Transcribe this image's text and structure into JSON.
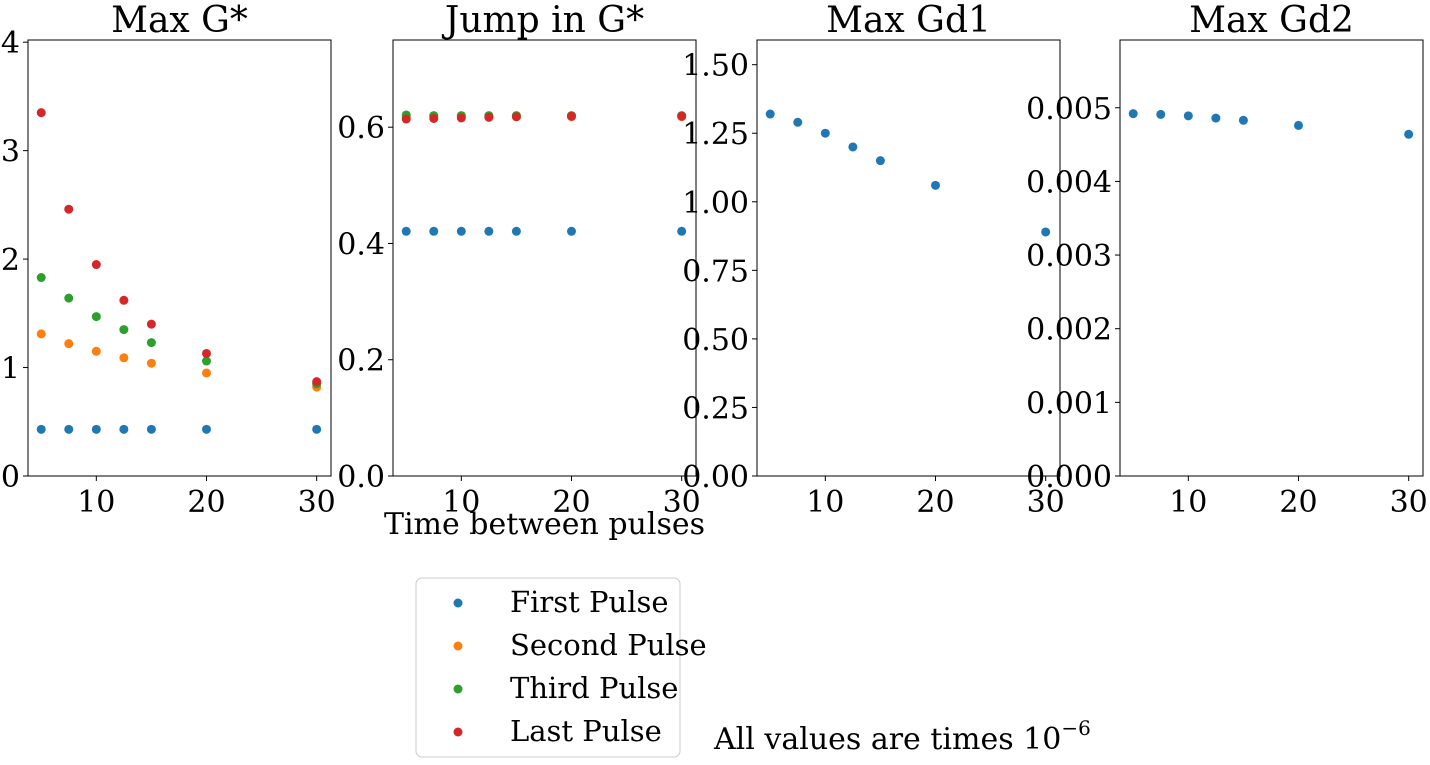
{
  "figure": {
    "note_text": "All values are times 10",
    "note_exponent": "−6",
    "legend": {
      "entries": [
        {
          "label": "First Pulse",
          "color": "#1f77b4"
        },
        {
          "label": "Second Pulse",
          "color": "#ff7f0e"
        },
        {
          "label": "Third Pulse",
          "color": "#2ca02c"
        },
        {
          "label": "Last Pulse",
          "color": "#d62728"
        }
      ]
    }
  },
  "chart_data": [
    {
      "type": "scatter",
      "title": "Max G*",
      "xlabel": "",
      "ylabel": "",
      "xlim": [
        3.8,
        31.3
      ],
      "ylim": [
        0,
        4.02
      ],
      "xticks": [
        10,
        20,
        30
      ],
      "xtick_labels": [
        "10",
        "20",
        "30"
      ],
      "yticks": [
        0,
        1,
        2,
        3,
        4
      ],
      "ytick_labels": [
        "0",
        "1",
        "2",
        "3",
        "4"
      ],
      "x": [
        5,
        7.5,
        10,
        12.5,
        15,
        20,
        30
      ],
      "series": [
        {
          "name": "First Pulse",
          "color": "#1f77b4",
          "values": [
            0.43,
            0.43,
            0.43,
            0.43,
            0.43,
            0.43,
            0.43
          ]
        },
        {
          "name": "Second Pulse",
          "color": "#ff7f0e",
          "values": [
            1.31,
            1.22,
            1.15,
            1.09,
            1.04,
            0.95,
            0.82
          ]
        },
        {
          "name": "Third Pulse",
          "color": "#2ca02c",
          "values": [
            1.83,
            1.64,
            1.47,
            1.35,
            1.23,
            1.06,
            0.85
          ]
        },
        {
          "name": "Last Pulse",
          "color": "#d62728",
          "values": [
            3.35,
            2.46,
            1.95,
            1.62,
            1.4,
            1.13,
            0.87
          ]
        }
      ]
    },
    {
      "type": "scatter",
      "title": "Jump in G*",
      "xlabel": "Time between pulses",
      "ylabel": "",
      "xlim": [
        3.8,
        31.3
      ],
      "ylim": [
        0,
        0.75
      ],
      "xticks": [
        10,
        20,
        30
      ],
      "xtick_labels": [
        "10",
        "20",
        "30"
      ],
      "yticks": [
        0,
        0.2,
        0.4,
        0.6
      ],
      "ytick_labels": [
        "0.0",
        "0.2",
        "0.4",
        "0.6"
      ],
      "x": [
        5,
        7.5,
        10,
        12.5,
        15,
        20,
        30
      ],
      "series": [
        {
          "name": "First Pulse",
          "color": "#1f77b4",
          "values": [
            0.421,
            0.421,
            0.421,
            0.421,
            0.421,
            0.421,
            0.421
          ]
        },
        {
          "name": "Second Pulse",
          "color": "#ff7f0e",
          "values": [
            0.618,
            0.618,
            0.618,
            0.618,
            0.618,
            0.618,
            0.618
          ]
        },
        {
          "name": "Third Pulse",
          "color": "#2ca02c",
          "values": [
            0.621,
            0.62,
            0.62,
            0.62,
            0.62,
            0.62,
            0.62
          ]
        },
        {
          "name": "Last Pulse",
          "color": "#d62728",
          "values": [
            0.614,
            0.615,
            0.616,
            0.617,
            0.618,
            0.619,
            0.619
          ]
        }
      ]
    },
    {
      "type": "scatter",
      "title": "Max Gd1",
      "xlabel": "",
      "ylabel": "",
      "xlim": [
        3.8,
        31.3
      ],
      "ylim": [
        0,
        1.59
      ],
      "xticks": [
        10,
        20,
        30
      ],
      "xtick_labels": [
        "10",
        "20",
        "30"
      ],
      "yticks": [
        0,
        0.25,
        0.5,
        0.75,
        1.0,
        1.25,
        1.5
      ],
      "ytick_labels": [
        "0.00",
        "0.25",
        "0.50",
        "0.75",
        "1.00",
        "1.25",
        "1.50"
      ],
      "x": [
        5,
        7.5,
        10,
        12.5,
        15,
        20,
        30
      ],
      "series": [
        {
          "name": "First Pulse",
          "color": "#1f77b4",
          "values": [
            1.32,
            1.29,
            1.25,
            1.2,
            1.15,
            1.06,
            0.89
          ]
        }
      ]
    },
    {
      "type": "scatter",
      "title": "Max Gd2",
      "xlabel": "",
      "ylabel": "",
      "xlim": [
        3.8,
        31.3
      ],
      "ylim": [
        0,
        0.00592
      ],
      "xticks": [
        10,
        20,
        30
      ],
      "xtick_labels": [
        "10",
        "20",
        "30"
      ],
      "yticks": [
        0,
        0.001,
        0.002,
        0.003,
        0.004,
        0.005
      ],
      "ytick_labels": [
        "0.000",
        "0.001",
        "0.002",
        "0.003",
        "0.004",
        "0.005"
      ],
      "x": [
        5,
        7.5,
        10,
        12.5,
        15,
        20,
        30
      ],
      "series": [
        {
          "name": "First Pulse",
          "color": "#1f77b4",
          "values": [
            0.00492,
            0.00491,
            0.00489,
            0.00486,
            0.00483,
            0.00476,
            0.00464
          ]
        }
      ]
    }
  ]
}
